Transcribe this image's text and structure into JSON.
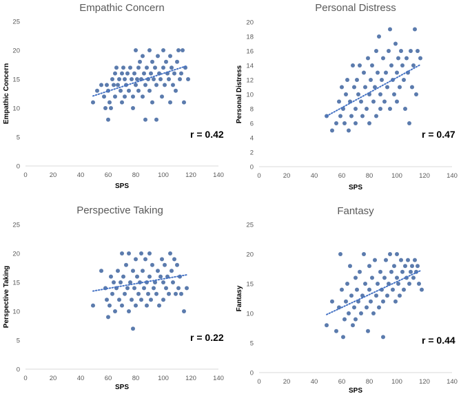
{
  "chart_data": [
    {
      "type": "scatter",
      "title": "Empathic Concern",
      "xlabel": "SPS",
      "ylabel": "Empathic Concern",
      "xlim": [
        0,
        140
      ],
      "ylim": [
        0,
        25
      ],
      "xticks": [
        "0",
        "20",
        "40",
        "60",
        "80",
        "100",
        "120",
        "140"
      ],
      "yticks": [
        "0",
        "5",
        "10",
        "15",
        "20",
        "25"
      ],
      "annotation": "r = 0.42",
      "trendline": {
        "style": "dotted",
        "x": [
          49,
          117
        ],
        "y": [
          12.1,
          17.3
        ]
      },
      "points": [
        [
          49,
          11
        ],
        [
          52,
          13
        ],
        [
          55,
          14
        ],
        [
          57,
          12
        ],
        [
          58,
          10
        ],
        [
          59,
          14
        ],
        [
          60,
          13
        ],
        [
          60,
          8
        ],
        [
          61,
          11
        ],
        [
          62,
          10
        ],
        [
          63,
          15
        ],
        [
          64,
          14
        ],
        [
          65,
          16
        ],
        [
          65,
          12
        ],
        [
          66,
          17
        ],
        [
          67,
          14
        ],
        [
          68,
          15
        ],
        [
          69,
          13
        ],
        [
          70,
          16
        ],
        [
          70,
          11
        ],
        [
          71,
          17
        ],
        [
          72,
          15
        ],
        [
          72,
          12
        ],
        [
          73,
          14
        ],
        [
          74,
          16
        ],
        [
          75,
          13
        ],
        [
          76,
          17
        ],
        [
          77,
          15
        ],
        [
          78,
          10
        ],
        [
          78,
          12
        ],
        [
          79,
          16
        ],
        [
          80,
          20
        ],
        [
          80,
          14
        ],
        [
          81,
          15
        ],
        [
          82,
          17
        ],
        [
          82,
          13
        ],
        [
          83,
          18
        ],
        [
          84,
          15
        ],
        [
          85,
          19
        ],
        [
          85,
          12
        ],
        [
          86,
          16
        ],
        [
          87,
          14
        ],
        [
          87,
          8
        ],
        [
          88,
          17
        ],
        [
          89,
          15
        ],
        [
          90,
          20
        ],
        [
          90,
          13
        ],
        [
          91,
          16
        ],
        [
          92,
          18
        ],
        [
          92,
          11
        ],
        [
          93,
          15
        ],
        [
          94,
          17
        ],
        [
          95,
          14
        ],
        [
          95,
          8
        ],
        [
          96,
          19
        ],
        [
          97,
          16
        ],
        [
          98,
          15
        ],
        [
          99,
          12
        ],
        [
          100,
          20
        ],
        [
          100,
          17
        ],
        [
          101,
          14
        ],
        [
          102,
          18
        ],
        [
          103,
          16
        ],
        [
          104,
          15
        ],
        [
          105,
          19
        ],
        [
          105,
          11
        ],
        [
          106,
          17
        ],
        [
          107,
          14
        ],
        [
          108,
          16
        ],
        [
          109,
          13
        ],
        [
          110,
          18
        ],
        [
          111,
          20
        ],
        [
          112,
          15
        ],
        [
          113,
          16
        ],
        [
          114,
          20
        ],
        [
          115,
          11
        ],
        [
          116,
          17
        ],
        [
          118,
          15
        ]
      ]
    },
    {
      "type": "scatter",
      "title": "Personal Distress",
      "xlabel": "SPS",
      "ylabel": "Personal Distress",
      "xlim": [
        0,
        140
      ],
      "ylim": [
        0,
        20
      ],
      "xticks": [
        "0",
        "20",
        "40",
        "60",
        "80",
        "100",
        "120",
        "140"
      ],
      "yticks": [
        "0",
        "2",
        "4",
        "6",
        "8",
        "10",
        "12",
        "14",
        "16",
        "18",
        "20"
      ],
      "annotation": "r = 0.47",
      "trendline": {
        "style": "dotted",
        "x": [
          49,
          117
        ],
        "y": [
          7.0,
          14.1
        ]
      },
      "points": [
        [
          49,
          7
        ],
        [
          53,
          5
        ],
        [
          56,
          6
        ],
        [
          58,
          9
        ],
        [
          59,
          7
        ],
        [
          60,
          11
        ],
        [
          61,
          8
        ],
        [
          62,
          6
        ],
        [
          63,
          10
        ],
        [
          64,
          12
        ],
        [
          65,
          5
        ],
        [
          66,
          9
        ],
        [
          67,
          7
        ],
        [
          68,
          14
        ],
        [
          69,
          11
        ],
        [
          70,
          8
        ],
        [
          70,
          6
        ],
        [
          71,
          12
        ],
        [
          72,
          10
        ],
        [
          73,
          14
        ],
        [
          74,
          9
        ],
        [
          75,
          7
        ],
        [
          76,
          13
        ],
        [
          77,
          11
        ],
        [
          78,
          8
        ],
        [
          79,
          15
        ],
        [
          80,
          10
        ],
        [
          80,
          6
        ],
        [
          81,
          12
        ],
        [
          82,
          14
        ],
        [
          83,
          9
        ],
        [
          84,
          11
        ],
        [
          85,
          16
        ],
        [
          85,
          7
        ],
        [
          86,
          13
        ],
        [
          87,
          18
        ],
        [
          88,
          10
        ],
        [
          88,
          8
        ],
        [
          89,
          12
        ],
        [
          90,
          15
        ],
        [
          91,
          9
        ],
        [
          92,
          13
        ],
        [
          93,
          11
        ],
        [
          94,
          16
        ],
        [
          95,
          19
        ],
        [
          95,
          8
        ],
        [
          96,
          14
        ],
        [
          97,
          12
        ],
        [
          98,
          10
        ],
        [
          99,
          17
        ],
        [
          100,
          13
        ],
        [
          100,
          9
        ],
        [
          101,
          15
        ],
        [
          102,
          11
        ],
        [
          103,
          16
        ],
        [
          104,
          14
        ],
        [
          105,
          12
        ],
        [
          106,
          8
        ],
        [
          107,
          15
        ],
        [
          108,
          13
        ],
        [
          109,
          6
        ],
        [
          110,
          16
        ],
        [
          111,
          11
        ],
        [
          112,
          14
        ],
        [
          113,
          19
        ],
        [
          114,
          10
        ],
        [
          115,
          16
        ],
        [
          117,
          15
        ]
      ]
    },
    {
      "type": "scatter",
      "title": "Perspective Taking",
      "xlabel": "SPS",
      "ylabel": "Perspective Taking",
      "xlim": [
        0,
        140
      ],
      "ylim": [
        0,
        25
      ],
      "xticks": [
        "0",
        "20",
        "40",
        "60",
        "80",
        "100",
        "120",
        "140"
      ],
      "yticks": [
        "0",
        "5",
        "10",
        "15",
        "20",
        "25"
      ],
      "annotation": "r = 0.22",
      "trendline": {
        "style": "dotted",
        "x": [
          49,
          117
        ],
        "y": [
          13.5,
          16.3
        ]
      },
      "points": [
        [
          49,
          11
        ],
        [
          55,
          17
        ],
        [
          58,
          14
        ],
        [
          59,
          12
        ],
        [
          60,
          9
        ],
        [
          61,
          11
        ],
        [
          62,
          16
        ],
        [
          63,
          13
        ],
        [
          64,
          15
        ],
        [
          65,
          10
        ],
        [
          66,
          14
        ],
        [
          67,
          17
        ],
        [
          68,
          12
        ],
        [
          69,
          15
        ],
        [
          70,
          20
        ],
        [
          70,
          11
        ],
        [
          71,
          16
        ],
        [
          72,
          13
        ],
        [
          73,
          18
        ],
        [
          74,
          14
        ],
        [
          75,
          20
        ],
        [
          75,
          10
        ],
        [
          76,
          15
        ],
        [
          77,
          12
        ],
        [
          78,
          7
        ],
        [
          78,
          17
        ],
        [
          79,
          14
        ],
        [
          80,
          19
        ],
        [
          80,
          11
        ],
        [
          81,
          16
        ],
        [
          82,
          13
        ],
        [
          83,
          15
        ],
        [
          84,
          20
        ],
        [
          84,
          12
        ],
        [
          85,
          17
        ],
        [
          86,
          14
        ],
        [
          87,
          19
        ],
        [
          88,
          15
        ],
        [
          88,
          11
        ],
        [
          89,
          13
        ],
        [
          90,
          20
        ],
        [
          90,
          16
        ],
        [
          91,
          12
        ],
        [
          92,
          18
        ],
        [
          93,
          14
        ],
        [
          94,
          15
        ],
        [
          95,
          13
        ],
        [
          96,
          17
        ],
        [
          97,
          11
        ],
        [
          98,
          16
        ],
        [
          99,
          19
        ],
        [
          100,
          15
        ],
        [
          100,
          12
        ],
        [
          101,
          18
        ],
        [
          102,
          14
        ],
        [
          103,
          16
        ],
        [
          104,
          13
        ],
        [
          105,
          20
        ],
        [
          106,
          17
        ],
        [
          107,
          15
        ],
        [
          108,
          19
        ],
        [
          109,
          13
        ],
        [
          110,
          18
        ],
        [
          111,
          14
        ],
        [
          112,
          16
        ],
        [
          113,
          13
        ],
        [
          115,
          10
        ],
        [
          117,
          14
        ]
      ]
    },
    {
      "type": "scatter",
      "title": "Fantasy",
      "xlabel": "SPS",
      "ylabel": "Fantasy",
      "xlim": [
        0,
        140
      ],
      "ylim": [
        0,
        25
      ],
      "xticks": [
        "0",
        "20",
        "40",
        "60",
        "80",
        "100",
        "120",
        "140"
      ],
      "yticks": [
        "0",
        "5",
        "10",
        "15",
        "20",
        "25"
      ],
      "annotation": "r = 0.44",
      "trendline": {
        "style": "dotted",
        "x": [
          49,
          117
        ],
        "y": [
          9.8,
          17.2
        ]
      },
      "points": [
        [
          49,
          8
        ],
        [
          53,
          12
        ],
        [
          56,
          7
        ],
        [
          58,
          11
        ],
        [
          59,
          20
        ],
        [
          60,
          14
        ],
        [
          61,
          6
        ],
        [
          62,
          9
        ],
        [
          63,
          12
        ],
        [
          64,
          15
        ],
        [
          65,
          10
        ],
        [
          66,
          18
        ],
        [
          67,
          13
        ],
        [
          68,
          8
        ],
        [
          69,
          11
        ],
        [
          70,
          16
        ],
        [
          70,
          9
        ],
        [
          71,
          14
        ],
        [
          72,
          12
        ],
        [
          73,
          17
        ],
        [
          74,
          10
        ],
        [
          75,
          13
        ],
        [
          76,
          20
        ],
        [
          77,
          15
        ],
        [
          78,
          11
        ],
        [
          79,
          7
        ],
        [
          80,
          18
        ],
        [
          80,
          14
        ],
        [
          81,
          12
        ],
        [
          82,
          16
        ],
        [
          83,
          10
        ],
        [
          84,
          19
        ],
        [
          85,
          13
        ],
        [
          86,
          15
        ],
        [
          87,
          11
        ],
        [
          88,
          17
        ],
        [
          89,
          14
        ],
        [
          90,
          12
        ],
        [
          90,
          6
        ],
        [
          91,
          16
        ],
        [
          92,
          19
        ],
        [
          93,
          13
        ],
        [
          94,
          15
        ],
        [
          95,
          20
        ],
        [
          96,
          17
        ],
        [
          97,
          14
        ],
        [
          98,
          18
        ],
        [
          99,
          12
        ],
        [
          100,
          16
        ],
        [
          100,
          20
        ],
        [
          101,
          15
        ],
        [
          102,
          13
        ],
        [
          103,
          19
        ],
        [
          104,
          17
        ],
        [
          105,
          14
        ],
        [
          106,
          18
        ],
        [
          107,
          16
        ],
        [
          108,
          19
        ],
        [
          109,
          15
        ],
        [
          110,
          17
        ],
        [
          111,
          18
        ],
        [
          112,
          16
        ],
        [
          113,
          19
        ],
        [
          114,
          17
        ],
        [
          115,
          18
        ],
        [
          116,
          15
        ],
        [
          118,
          14
        ]
      ]
    }
  ]
}
